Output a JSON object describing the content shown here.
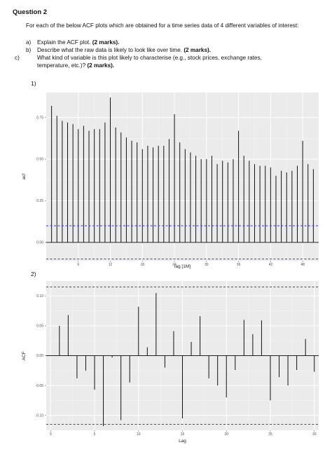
{
  "question": {
    "title": "Question 2",
    "intro": "For each of the below ACF plots which are obtained for a time series data of 4 different variables of interest:",
    "items": [
      {
        "label": "a)",
        "text": "Explain the ACF plot.",
        "marks": "(2 marks)."
      },
      {
        "label": "b)",
        "text": "Describe what the raw data is likely to look like over time.",
        "marks": "(2 marks)."
      },
      {
        "label": "c)",
        "text": "What kind of variable is this plot likely to characterise (e.g., stock prices, exchange rates, temperature, etc.)?",
        "marks": "(2 marks)."
      }
    ]
  },
  "plot_numbers": [
    "1)",
    "2)"
  ],
  "chart_data": [
    {
      "type": "bar",
      "title": "",
      "xlabel": "lag [1M]",
      "ylabel": "acf",
      "xlim": [
        0,
        51
      ],
      "ylim": [
        -0.11,
        0.9
      ],
      "x_ticks": [
        6,
        12,
        18,
        24,
        30,
        36,
        42,
        48
      ],
      "y_ticks": [
        0.0,
        0.25,
        0.5,
        0.75
      ],
      "y_tick_labels": [
        "0.00",
        "0.25",
        "0.50",
        "0.75"
      ],
      "grid": true,
      "confidence_bound": 0.1,
      "lags": [
        1,
        2,
        3,
        4,
        5,
        6,
        7,
        8,
        9,
        10,
        11,
        12,
        13,
        14,
        15,
        16,
        17,
        18,
        19,
        20,
        21,
        22,
        23,
        24,
        25,
        26,
        27,
        28,
        29,
        30,
        31,
        32,
        33,
        34,
        35,
        36,
        37,
        38,
        39,
        40,
        41,
        42,
        43,
        44,
        45,
        46,
        47,
        48,
        49,
        50
      ],
      "values": [
        0.82,
        0.76,
        0.73,
        0.72,
        0.71,
        0.68,
        0.7,
        0.67,
        0.68,
        0.68,
        0.72,
        0.87,
        0.69,
        0.66,
        0.63,
        0.61,
        0.6,
        0.56,
        0.58,
        0.57,
        0.58,
        0.58,
        0.62,
        0.77,
        0.6,
        0.56,
        0.54,
        0.52,
        0.5,
        0.5,
        0.52,
        0.47,
        0.49,
        0.48,
        0.5,
        0.67,
        0.52,
        0.49,
        0.47,
        0.46,
        0.46,
        0.45,
        0.4,
        0.43,
        0.42,
        0.43,
        0.46,
        0.61,
        0.47,
        0.44
      ]
    },
    {
      "type": "bar",
      "title": "",
      "xlabel": "Lag",
      "ylabel": "ACF",
      "xlim": [
        -0.5,
        30.5
      ],
      "ylim": [
        -0.125,
        0.125
      ],
      "x_ticks": [
        0,
        5,
        10,
        15,
        20,
        25,
        30
      ],
      "y_ticks": [
        -0.1,
        -0.05,
        0.0,
        0.05,
        0.1
      ],
      "y_tick_labels": [
        "-0.10",
        "-0.05",
        "0.00",
        "0.05",
        "0.10"
      ],
      "grid": true,
      "confidence_bound": 0.115,
      "lags": [
        1,
        2,
        3,
        4,
        5,
        6,
        7,
        8,
        9,
        10,
        11,
        12,
        13,
        14,
        15,
        16,
        17,
        18,
        19,
        20,
        21,
        22,
        23,
        24,
        25,
        26,
        27,
        28,
        29,
        30
      ],
      "values": [
        0.05,
        0.068,
        -0.038,
        -0.025,
        -0.057,
        -0.118,
        -0.003,
        -0.108,
        -0.045,
        0.082,
        0.014,
        0.105,
        -0.02,
        0.041,
        -0.105,
        0.023,
        0.066,
        -0.038,
        -0.05,
        -0.07,
        -0.024,
        0.06,
        0.036,
        0.059,
        -0.075,
        -0.036,
        -0.05,
        -0.024,
        0.028,
        -0.027
      ]
    }
  ]
}
